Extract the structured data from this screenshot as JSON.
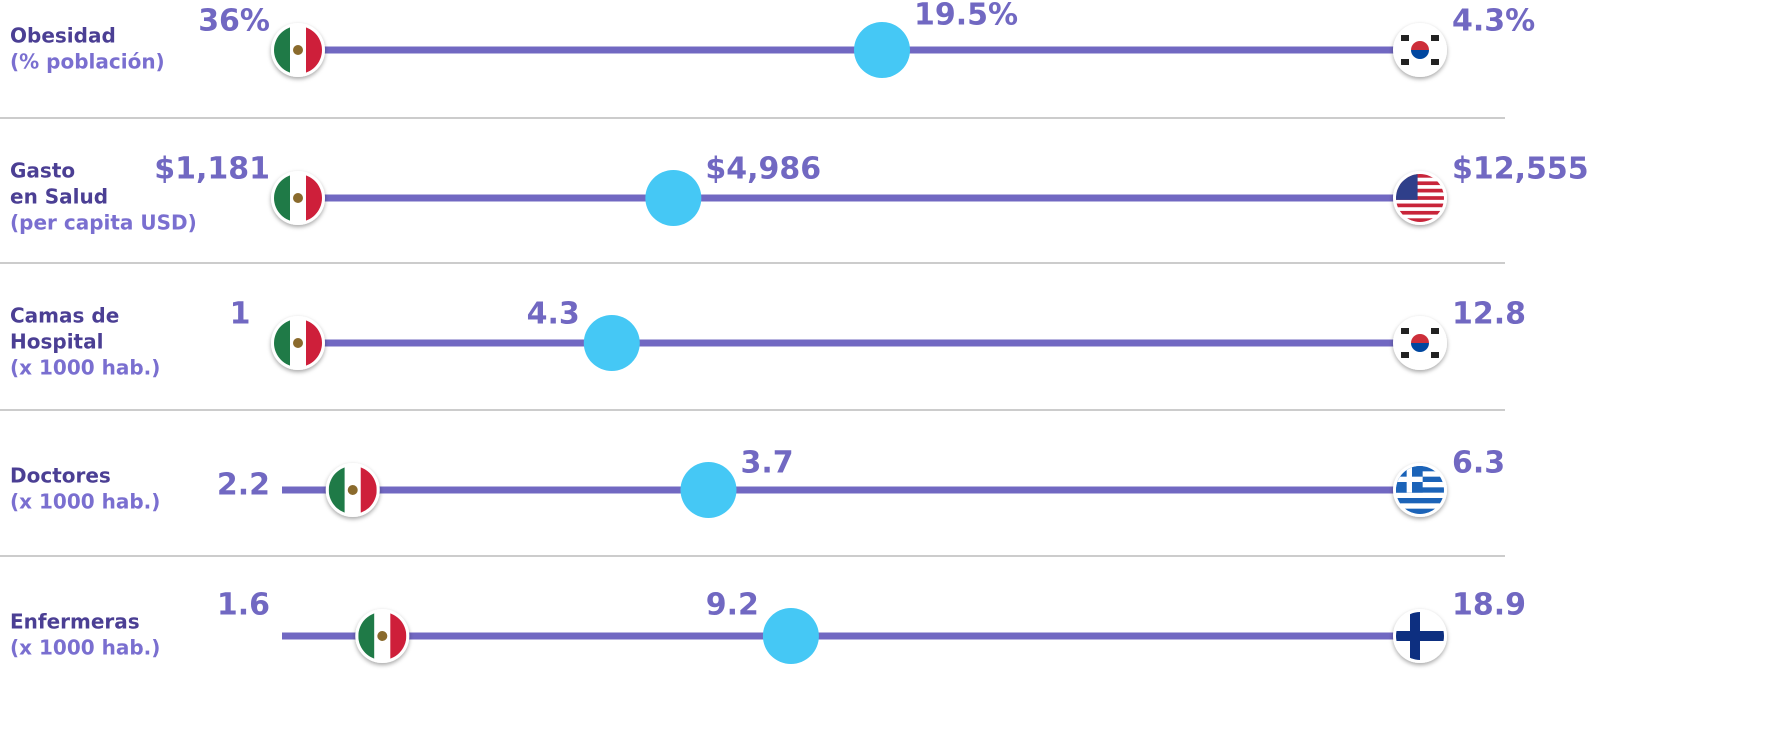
{
  "chart_data": {
    "type": "range",
    "color": "#7168c2",
    "dot_color": "#45c8f5",
    "label_color": "#4b3f94",
    "sublabel_color": "#7a6fd0",
    "rows": [
      {
        "label": [
          "Obesidad"
        ],
        "sublabel": "(% población)",
        "values": [
          36,
          19.5,
          4.3
        ],
        "value_labels": [
          "36%",
          "19.5%",
          "4.3%"
        ],
        "flags": [
          "mx",
          "kr"
        ]
      },
      {
        "label": [
          "Gasto",
          "en Salud"
        ],
        "sublabel": "(per capita USD)",
        "values": [
          1181,
          4986,
          12555
        ],
        "value_labels": [
          "$1,181",
          "$4,986",
          "$12,555"
        ],
        "flags": [
          "mx",
          "us"
        ]
      },
      {
        "label": [
          "Camas de",
          "Hospital"
        ],
        "sublabel": "(x 1000 hab.)",
        "values": [
          1,
          4.3,
          12.8
        ],
        "flags": [
          "mx",
          "kr"
        ]
      },
      {
        "label": [
          "Doctores"
        ],
        "sublabel": "(x 1000 hab.)",
        "values": [
          2.2,
          3.7,
          6.3
        ],
        "mexico": 2.4,
        "flags": [
          "mx",
          "gr"
        ]
      },
      {
        "label": [
          "Enfermeras"
        ],
        "sublabel": "(x 1000 hab.)",
        "values": [
          1.6,
          9.2,
          18.9
        ],
        "mexico": 2.9,
        "flags": [
          "mx",
          "fi"
        ]
      }
    ]
  }
}
